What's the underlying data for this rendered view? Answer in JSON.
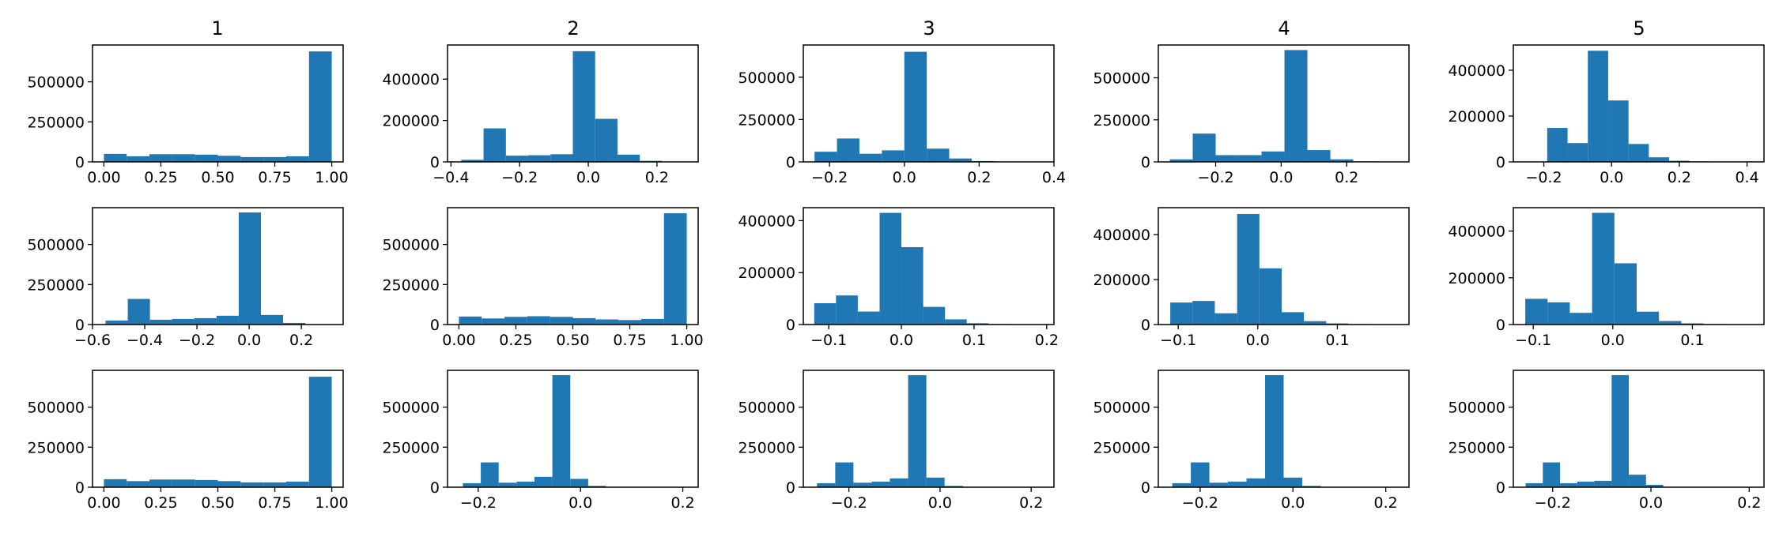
{
  "colors": {
    "bar": "#1f77b4",
    "axis": "#000000",
    "background": "#ffffff"
  },
  "column_titles": [
    "1",
    "2",
    "3",
    "4",
    "5"
  ],
  "chart_data": [
    {
      "type": "bar",
      "row": 1,
      "col": 1,
      "title": "1",
      "bin_edges": [
        0,
        0.1,
        0.2,
        0.3,
        0.4,
        0.5,
        0.6,
        0.7,
        0.8,
        0.9,
        1.0
      ],
      "values": [
        50000,
        35000,
        48000,
        48000,
        45000,
        38000,
        30000,
        30000,
        35000,
        690000
      ],
      "xlim": [
        -0.05,
        1.05
      ],
      "ylim": [
        0,
        730000
      ],
      "xticks": [
        0,
        0.25,
        0.5,
        0.75,
        1.0
      ],
      "xtick_labels": [
        "0.00",
        "0.25",
        "0.50",
        "0.75",
        "1.00"
      ],
      "yticks": [
        0,
        250000,
        500000
      ],
      "ytick_labels": [
        "0",
        "250000",
        "500000"
      ]
    },
    {
      "type": "bar",
      "row": 1,
      "col": 2,
      "title": "2",
      "bin_edges": [
        -0.37,
        -0.305,
        -0.24,
        -0.175,
        -0.11,
        -0.045,
        0.02,
        0.085,
        0.15,
        0.215,
        0.28
      ],
      "values": [
        10000,
        162000,
        30000,
        32000,
        37000,
        535000,
        208000,
        35000,
        5000,
        2000
      ],
      "xlim": [
        -0.41,
        0.32
      ],
      "ylim": [
        0,
        565000
      ],
      "xticks": [
        -0.4,
        -0.2,
        0.0,
        0.2
      ],
      "xtick_labels": [
        "−0.4",
        "−0.2",
        "0.0",
        "0.2"
      ],
      "yticks": [
        0,
        200000,
        400000
      ],
      "ytick_labels": [
        "0",
        "200000",
        "400000"
      ]
    },
    {
      "type": "bar",
      "row": 1,
      "col": 3,
      "title": "3",
      "bin_edges": [
        -0.24,
        -0.18,
        -0.12,
        -0.06,
        0.0,
        0.06,
        0.12,
        0.18,
        0.24,
        0.3,
        0.36
      ],
      "values": [
        60000,
        138000,
        48000,
        68000,
        650000,
        78000,
        20000,
        5000,
        2000,
        1000
      ],
      "xlim": [
        -0.27,
        0.4
      ],
      "ylim": [
        0,
        690000
      ],
      "xticks": [
        -0.2,
        0.0,
        0.2,
        0.4
      ],
      "xtick_labels": [
        "−0.2",
        "0.0",
        "0.2",
        "0.4"
      ],
      "yticks": [
        0,
        250000,
        500000
      ],
      "ytick_labels": [
        "0",
        "250000",
        "500000"
      ]
    },
    {
      "type": "bar",
      "row": 1,
      "col": 4,
      "title": "4",
      "bin_edges": [
        -0.34,
        -0.27,
        -0.2,
        -0.13,
        -0.06,
        0.01,
        0.08,
        0.15,
        0.22,
        0.29,
        0.36
      ],
      "values": [
        15000,
        168000,
        40000,
        40000,
        62000,
        665000,
        70000,
        15000,
        3000,
        1000
      ],
      "xlim": [
        -0.375,
        0.39
      ],
      "ylim": [
        0,
        695000
      ],
      "xticks": [
        -0.2,
        0.0,
        0.2
      ],
      "xtick_labels": [
        "−0.2",
        "0.0",
        "0.2"
      ],
      "yticks": [
        0,
        250000,
        500000
      ],
      "ytick_labels": [
        "0",
        "250000",
        "500000"
      ]
    },
    {
      "type": "bar",
      "row": 1,
      "col": 5,
      "title": "5",
      "bin_edges": [
        -0.19,
        -0.13,
        -0.07,
        -0.01,
        0.05,
        0.11,
        0.17,
        0.23,
        0.29,
        0.35,
        0.41
      ],
      "values": [
        148000,
        82000,
        485000,
        268000,
        78000,
        20000,
        5000,
        2000,
        1000,
        500
      ],
      "xlim": [
        -0.29,
        0.45
      ],
      "ylim": [
        0,
        510000
      ],
      "xticks": [
        -0.2,
        0.0,
        0.2,
        0.4
      ],
      "xtick_labels": [
        "−0.2",
        "0.0",
        "0.2",
        "0.4"
      ],
      "yticks": [
        0,
        200000,
        400000
      ],
      "ytick_labels": [
        "0",
        "200000",
        "400000"
      ]
    },
    {
      "type": "bar",
      "row": 2,
      "col": 1,
      "bin_edges": [
        -0.55,
        -0.465,
        -0.38,
        -0.295,
        -0.21,
        -0.125,
        -0.04,
        0.045,
        0.13,
        0.215,
        0.3
      ],
      "values": [
        25000,
        160000,
        30000,
        35000,
        40000,
        55000,
        700000,
        60000,
        10000,
        2000
      ],
      "xlim": [
        -0.6,
        0.36
      ],
      "ylim": [
        0,
        730000
      ],
      "xticks": [
        -0.6,
        -0.4,
        -0.2,
        0.0,
        0.2
      ],
      "xtick_labels": [
        "−0.6",
        "−0.4",
        "−0.2",
        "0.0",
        "0.2"
      ],
      "yticks": [
        0,
        250000,
        500000
      ],
      "ytick_labels": [
        "0",
        "250000",
        "500000"
      ]
    },
    {
      "type": "bar",
      "row": 2,
      "col": 2,
      "bin_edges": [
        0,
        0.1,
        0.2,
        0.3,
        0.4,
        0.5,
        0.6,
        0.7,
        0.8,
        0.9,
        1.0
      ],
      "values": [
        50000,
        38000,
        48000,
        52000,
        48000,
        40000,
        32000,
        28000,
        35000,
        695000
      ],
      "xlim": [
        -0.05,
        1.05
      ],
      "ylim": [
        0,
        730000
      ],
      "xticks": [
        0,
        0.25,
        0.5,
        0.75,
        1.0
      ],
      "xtick_labels": [
        "0.00",
        "0.25",
        "0.50",
        "0.75",
        "1.00"
      ],
      "yticks": [
        0,
        250000,
        500000
      ],
      "ytick_labels": [
        "0",
        "250000",
        "500000"
      ]
    },
    {
      "type": "bar",
      "row": 2,
      "col": 3,
      "bin_edges": [
        -0.12,
        -0.09,
        -0.06,
        -0.03,
        0.0,
        0.03,
        0.06,
        0.09,
        0.12,
        0.15,
        0.18
      ],
      "values": [
        82000,
        112000,
        50000,
        430000,
        298000,
        68000,
        20000,
        5000,
        2000,
        500
      ],
      "xlim": [
        -0.135,
        0.21
      ],
      "ylim": [
        0,
        450000
      ],
      "xticks": [
        -0.1,
        0.0,
        0.1,
        0.2
      ],
      "xtick_labels": [
        "−0.1",
        "0.0",
        "0.1",
        "0.2"
      ],
      "yticks": [
        0,
        200000,
        400000
      ],
      "ytick_labels": [
        "0",
        "200000",
        "400000"
      ]
    },
    {
      "type": "bar",
      "row": 2,
      "col": 4,
      "bin_edges": [
        -0.11,
        -0.082,
        -0.054,
        -0.026,
        0.002,
        0.03,
        0.058,
        0.086,
        0.114,
        0.142,
        0.17
      ],
      "values": [
        98000,
        105000,
        50000,
        492000,
        250000,
        55000,
        15000,
        5000,
        2000,
        500
      ],
      "xlim": [
        -0.125,
        0.19
      ],
      "ylim": [
        0,
        520000
      ],
      "xticks": [
        -0.1,
        0.0,
        0.1
      ],
      "xtick_labels": [
        "−0.1",
        "0.0",
        "0.1"
      ],
      "yticks": [
        0,
        200000,
        400000
      ],
      "ytick_labels": [
        "0",
        "200000",
        "400000"
      ]
    },
    {
      "type": "bar",
      "row": 2,
      "col": 5,
      "bin_edges": [
        -0.11,
        -0.082,
        -0.054,
        -0.026,
        0.002,
        0.03,
        0.058,
        0.086,
        0.114,
        0.142,
        0.17
      ],
      "values": [
        110000,
        95000,
        50000,
        478000,
        262000,
        55000,
        15000,
        5000,
        2000,
        500
      ],
      "xlim": [
        -0.125,
        0.19
      ],
      "ylim": [
        0,
        500000
      ],
      "xticks": [
        -0.1,
        0.0,
        0.1
      ],
      "xtick_labels": [
        "−0.1",
        "0.0",
        "0.1"
      ],
      "yticks": [
        0,
        200000,
        400000
      ],
      "ytick_labels": [
        "0",
        "200000",
        "400000"
      ]
    },
    {
      "type": "bar",
      "row": 3,
      "col": 1,
      "bin_edges": [
        0,
        0.1,
        0.2,
        0.3,
        0.4,
        0.5,
        0.6,
        0.7,
        0.8,
        0.9,
        1.0
      ],
      "values": [
        50000,
        38000,
        48000,
        48000,
        45000,
        38000,
        30000,
        30000,
        35000,
        690000
      ],
      "xlim": [
        -0.05,
        1.05
      ],
      "ylim": [
        0,
        730000
      ],
      "xticks": [
        0,
        0.25,
        0.5,
        0.75,
        1.0
      ],
      "xtick_labels": [
        "0.00",
        "0.25",
        "0.50",
        "0.75",
        "1.00"
      ],
      "yticks": [
        0,
        250000,
        500000
      ],
      "ytick_labels": [
        "0",
        "250000",
        "500000"
      ]
    },
    {
      "type": "bar",
      "row": 3,
      "col": 2,
      "bin_edges": [
        -0.23,
        -0.195,
        -0.16,
        -0.125,
        -0.09,
        -0.055,
        -0.02,
        0.015,
        0.05,
        0.085,
        0.12
      ],
      "values": [
        25000,
        155000,
        28000,
        35000,
        65000,
        700000,
        52000,
        8000,
        2000,
        1000
      ],
      "xlim": [
        -0.26,
        0.23
      ],
      "ylim": [
        0,
        730000
      ],
      "xticks": [
        -0.2,
        0.0,
        0.2
      ],
      "xtick_labels": [
        "−0.2",
        "0.0",
        "0.2"
      ],
      "yticks": [
        0,
        250000,
        500000
      ],
      "ytick_labels": [
        "0",
        "250000",
        "500000"
      ]
    },
    {
      "type": "bar",
      "row": 3,
      "col": 3,
      "bin_edges": [
        -0.27,
        -0.23,
        -0.19,
        -0.15,
        -0.11,
        -0.07,
        -0.03,
        0.01,
        0.05,
        0.09,
        0.13
      ],
      "values": [
        25000,
        155000,
        28000,
        35000,
        55000,
        700000,
        60000,
        8000,
        2000,
        1000
      ],
      "xlim": [
        -0.3,
        0.25
      ],
      "ylim": [
        0,
        730000
      ],
      "xticks": [
        -0.2,
        0.0,
        0.2
      ],
      "xtick_labels": [
        "−0.2",
        "0.0",
        "0.2"
      ],
      "yticks": [
        0,
        250000,
        500000
      ],
      "ytick_labels": [
        "0",
        "250000",
        "500000"
      ]
    },
    {
      "type": "bar",
      "row": 3,
      "col": 4,
      "bin_edges": [
        -0.26,
        -0.22,
        -0.18,
        -0.14,
        -0.1,
        -0.06,
        -0.02,
        0.02,
        0.06,
        0.1,
        0.14
      ],
      "values": [
        25000,
        155000,
        28000,
        35000,
        55000,
        700000,
        60000,
        8000,
        2000,
        1000
      ],
      "xlim": [
        -0.29,
        0.25
      ],
      "ylim": [
        0,
        730000
      ],
      "xticks": [
        -0.2,
        0.0,
        0.2
      ],
      "xtick_labels": [
        "−0.2",
        "0.0",
        "0.2"
      ],
      "yticks": [
        0,
        250000,
        500000
      ],
      "ytick_labels": [
        "0",
        "250000",
        "500000"
      ]
    },
    {
      "type": "bar",
      "row": 3,
      "col": 5,
      "bin_edges": [
        -0.255,
        -0.22,
        -0.185,
        -0.15,
        -0.115,
        -0.08,
        -0.045,
        -0.01,
        0.025,
        0.06,
        0.095
      ],
      "values": [
        25000,
        155000,
        25000,
        35000,
        40000,
        700000,
        78000,
        15000,
        2000,
        1000
      ],
      "xlim": [
        -0.28,
        0.23
      ],
      "ylim": [
        0,
        730000
      ],
      "xticks": [
        -0.2,
        0.0,
        0.2
      ],
      "xtick_labels": [
        "−0.2",
        "0.0",
        "0.2"
      ],
      "yticks": [
        0,
        250000,
        500000
      ],
      "ytick_labels": [
        "0",
        "250000",
        "500000"
      ]
    }
  ]
}
